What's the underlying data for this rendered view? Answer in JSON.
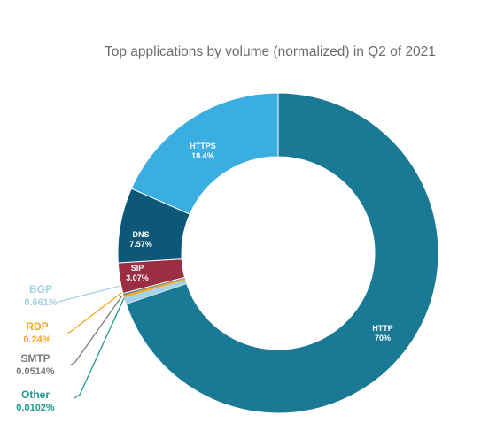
{
  "chart_data": {
    "type": "pie",
    "title": "Top applications by volume (normalized) in Q2 of 2021",
    "slices": [
      {
        "name": "HTTP",
        "display": "70%",
        "value": 70,
        "color": "#1a7a96"
      },
      {
        "name": "BGP",
        "display": "0.661%",
        "value": 0.661,
        "color": "#a6d2e3"
      },
      {
        "name": "RDP",
        "display": "0.24%",
        "value": 0.24,
        "color": "#f6a623"
      },
      {
        "name": "SMTP",
        "display": "0.0514%",
        "value": 0.0514,
        "color": "#7a7a7a"
      },
      {
        "name": "Other",
        "display": "0.0102%",
        "value": 0.0102,
        "color": "#1f9a8c"
      },
      {
        "name": "SIP",
        "display": "3.07%",
        "value": 3.07,
        "color": "#9b2e43"
      },
      {
        "name": "DNS",
        "display": "7.57%",
        "value": 7.57,
        "color": "#0d5878"
      },
      {
        "name": "HTTPS",
        "display": "18.4%",
        "value": 18.4,
        "color": "#3aaee0"
      }
    ],
    "legend": "none",
    "grid": false
  }
}
